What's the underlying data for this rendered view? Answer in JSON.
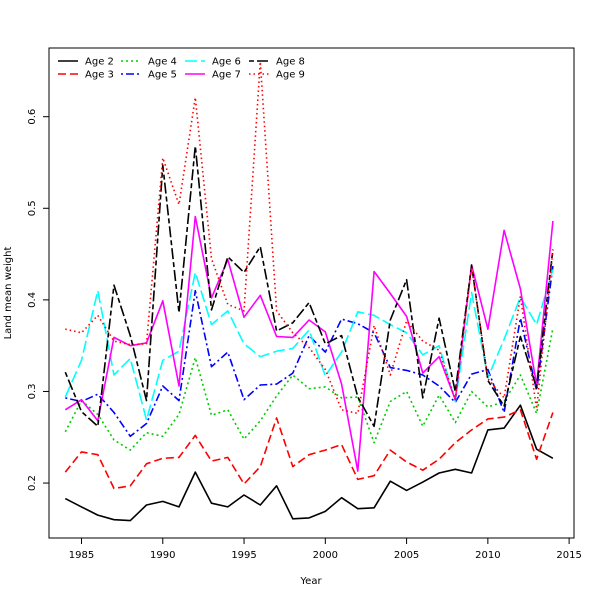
{
  "chart_data": {
    "type": "line",
    "title": "",
    "xlabel": "Year",
    "ylabel": "Land mean weight",
    "xlim": [
      1983,
      2015.3
    ],
    "ylim": [
      0.14,
      0.675
    ],
    "xticks": [
      1985,
      1990,
      1995,
      2000,
      2005,
      2010,
      2015
    ],
    "yticks": [
      0.2,
      0.3,
      0.4,
      0.5,
      0.6
    ],
    "legend_position": "top-left",
    "x": [
      1984,
      1985,
      1986,
      1987,
      1988,
      1989,
      1990,
      1991,
      1992,
      1993,
      1994,
      1995,
      1996,
      1997,
      1998,
      1999,
      2000,
      2001,
      2002,
      2003,
      2004,
      2005,
      2006,
      2007,
      2008,
      2009,
      2010,
      2011,
      2012,
      2013,
      2014
    ],
    "series": [
      {
        "name": "Age 2",
        "color": "#000000",
        "dash": "solid",
        "values": [
          0.183,
          0.174,
          0.165,
          0.16,
          0.159,
          0.176,
          0.18,
          0.174,
          0.212,
          0.178,
          0.174,
          0.187,
          0.176,
          0.197,
          0.161,
          0.162,
          0.169,
          0.184,
          0.172,
          0.173,
          0.202,
          0.192,
          0.201,
          0.211,
          0.215,
          0.211,
          0.258,
          0.26,
          0.285,
          0.237,
          0.227
        ]
      },
      {
        "name": "Age 3",
        "color": "#ff0000",
        "dash": "dashed",
        "values": [
          0.212,
          0.234,
          0.231,
          0.194,
          0.197,
          0.221,
          0.227,
          0.228,
          0.252,
          0.224,
          0.228,
          0.199,
          0.218,
          0.271,
          0.218,
          0.231,
          0.236,
          0.242,
          0.204,
          0.208,
          0.236,
          0.223,
          0.214,
          0.226,
          0.244,
          0.258,
          0.27,
          0.272,
          0.28,
          0.226,
          0.277
        ]
      },
      {
        "name": "Age 4",
        "color": "#00cd00",
        "dash": "dotted",
        "values": [
          0.256,
          0.29,
          0.275,
          0.247,
          0.236,
          0.255,
          0.251,
          0.275,
          0.337,
          0.274,
          0.28,
          0.248,
          0.268,
          0.295,
          0.318,
          0.303,
          0.305,
          0.293,
          0.294,
          0.244,
          0.289,
          0.3,
          0.262,
          0.296,
          0.266,
          0.3,
          0.283,
          0.289,
          0.318,
          0.276,
          0.369
        ]
      },
      {
        "name": "Age 5",
        "color": "#0000ff",
        "dash": "dashdot",
        "values": [
          0.293,
          0.289,
          0.297,
          0.277,
          0.251,
          0.265,
          0.306,
          0.29,
          0.41,
          0.327,
          0.343,
          0.291,
          0.307,
          0.308,
          0.32,
          0.361,
          0.343,
          0.379,
          0.374,
          0.364,
          0.326,
          0.323,
          0.318,
          0.306,
          0.288,
          0.319,
          0.324,
          0.277,
          0.38,
          0.301,
          0.437
        ]
      },
      {
        "name": "Age 6",
        "color": "#00ffff",
        "dash": "longdash",
        "values": [
          0.294,
          0.334,
          0.41,
          0.318,
          0.336,
          0.269,
          0.334,
          0.344,
          0.43,
          0.373,
          0.388,
          0.352,
          0.338,
          0.344,
          0.347,
          0.367,
          0.317,
          0.343,
          0.387,
          0.383,
          0.373,
          0.364,
          0.34,
          0.35,
          0.289,
          0.408,
          0.315,
          0.357,
          0.403,
          0.373,
          0.433
        ]
      },
      {
        "name": "Age 7",
        "color": "#ff00ff",
        "dash": "solid",
        "values": [
          0.28,
          0.291,
          0.268,
          0.359,
          0.35,
          0.353,
          0.399,
          0.306,
          0.491,
          0.402,
          0.444,
          0.381,
          0.405,
          0.36,
          0.359,
          0.378,
          0.365,
          0.308,
          0.213,
          0.431,
          0.407,
          0.382,
          0.32,
          0.338,
          0.291,
          0.438,
          0.368,
          0.476,
          0.412,
          0.307,
          0.486
        ]
      },
      {
        "name": "Age 8",
        "color": "#000000",
        "dash": "twodash",
        "values": [
          0.321,
          0.278,
          0.262,
          0.416,
          0.361,
          0.29,
          0.547,
          0.386,
          0.568,
          0.389,
          0.447,
          0.43,
          0.458,
          0.366,
          0.375,
          0.397,
          0.352,
          0.361,
          0.294,
          0.262,
          0.378,
          0.422,
          0.293,
          0.38,
          0.3,
          0.438,
          0.312,
          0.284,
          0.36,
          0.304,
          0.455
        ]
      },
      {
        "name": "Age 9",
        "color": "#ff0000",
        "dash": "dotted2",
        "values": [
          0.368,
          0.364,
          0.383,
          0.355,
          0.351,
          0.352,
          0.555,
          0.504,
          0.621,
          0.445,
          0.395,
          0.388,
          0.66,
          0.388,
          0.364,
          0.348,
          0.324,
          0.28,
          0.276,
          0.372,
          0.318,
          0.377,
          0.355,
          0.345,
          0.291,
          0.436,
          0.314,
          0.293,
          0.404,
          0.281,
          0.454
        ]
      }
    ]
  }
}
